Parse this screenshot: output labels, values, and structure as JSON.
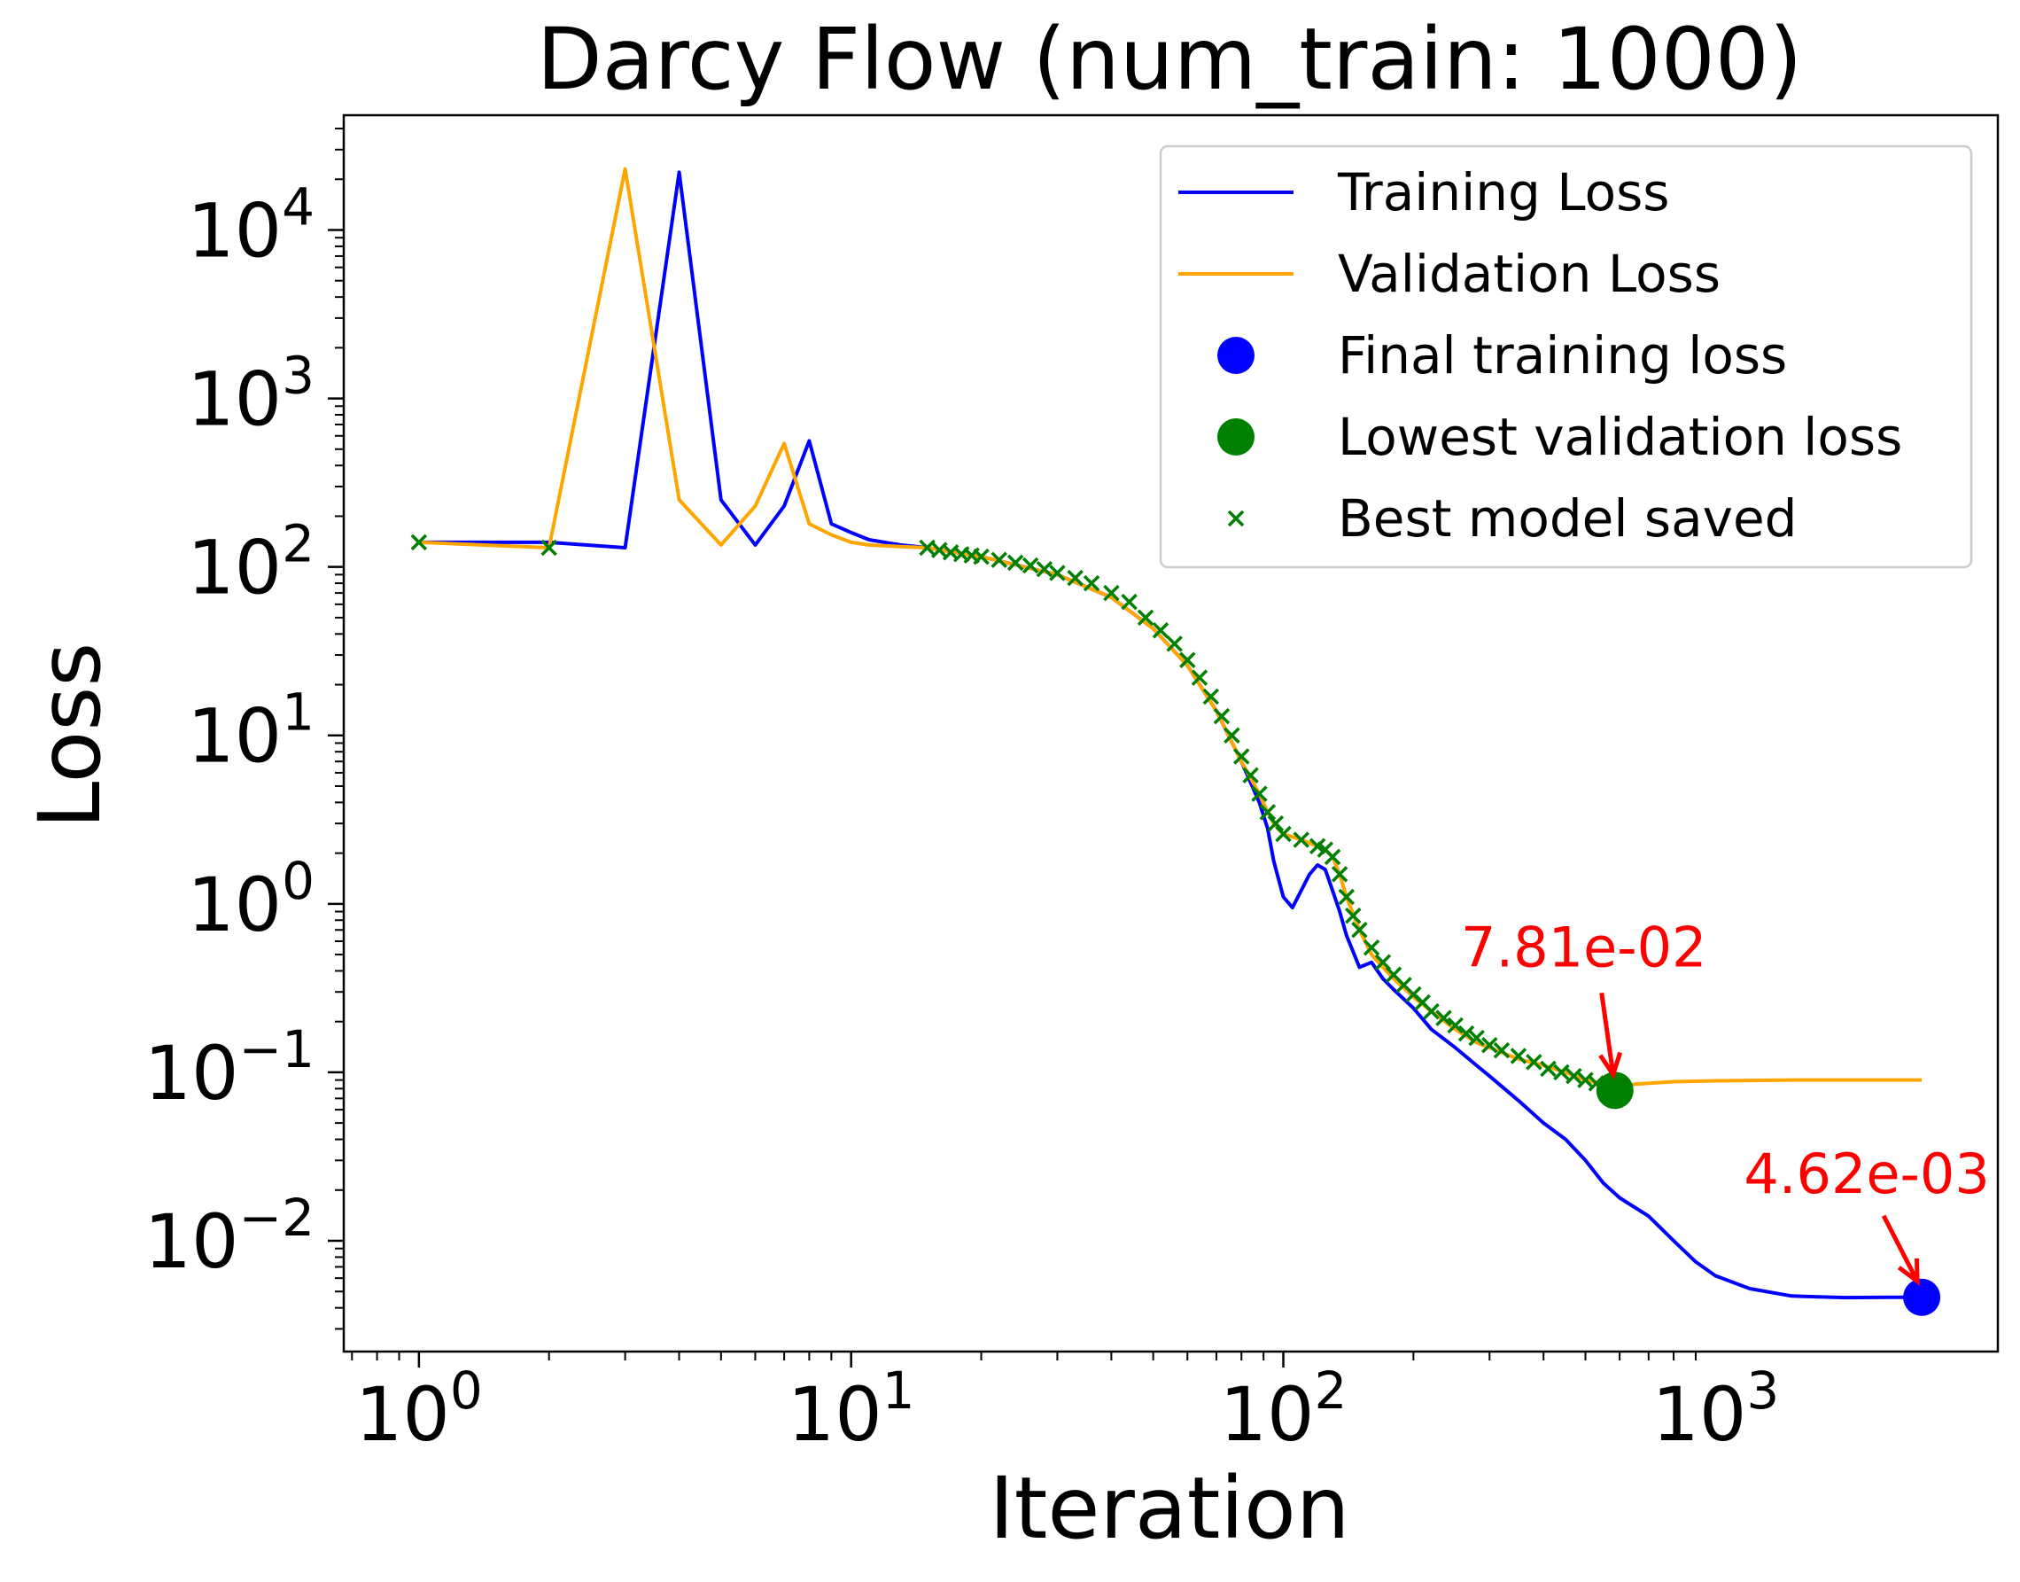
{
  "chart_data": {
    "type": "line",
    "title": "Darcy Flow (num_train: 1000)",
    "xlabel": "Iteration",
    "ylabel": "Loss",
    "xscale": "log",
    "yscale": "log",
    "xlim": [
      0.67,
      4500
    ],
    "ylim": [
      0.0022,
      48000
    ],
    "xticks": [
      {
        "value": 1,
        "base": "10",
        "exp": "0"
      },
      {
        "value": 10,
        "base": "10",
        "exp": "1"
      },
      {
        "value": 100,
        "base": "10",
        "exp": "2"
      },
      {
        "value": 1000,
        "base": "10",
        "exp": "3"
      }
    ],
    "yticks": [
      {
        "value": 0.01,
        "base": "10",
        "exp": "−2"
      },
      {
        "value": 0.1,
        "base": "10",
        "exp": "−1"
      },
      {
        "value": 1,
        "base": "10",
        "exp": "0"
      },
      {
        "value": 10,
        "base": "10",
        "exp": "1"
      },
      {
        "value": 100,
        "base": "10",
        "exp": "2"
      },
      {
        "value": 1000,
        "base": "10",
        "exp": "3"
      },
      {
        "value": 10000,
        "base": "10",
        "exp": "4"
      }
    ],
    "legend": {
      "placement": "upper right",
      "entries": [
        {
          "label": "Training Loss",
          "marker": "line",
          "color": "#0000ff"
        },
        {
          "label": "Validation Loss",
          "marker": "line",
          "color": "#ffa500"
        },
        {
          "label": "Final training loss",
          "marker": "dot",
          "color": "#0000ff"
        },
        {
          "label": "Lowest validation loss",
          "marker": "dot",
          "color": "#008000"
        },
        {
          "label": "Best model saved",
          "marker": "x",
          "color": "#008000"
        }
      ]
    },
    "series": [
      {
        "name": "Training Loss",
        "color": "#0000ff",
        "x": [
          1,
          2,
          3,
          4,
          5,
          6,
          7,
          8,
          9,
          10,
          11,
          13,
          15,
          20,
          30,
          40,
          50,
          60,
          70,
          80,
          88,
          92,
          95,
          100,
          105,
          110,
          115,
          120,
          125,
          130,
          135,
          140,
          150,
          160,
          170,
          180,
          200,
          220,
          250,
          280,
          300,
          350,
          400,
          450,
          500,
          550,
          600,
          700,
          800,
          900,
          1000,
          1200,
          1500,
          2000,
          2500,
          3000
        ],
        "y": [
          140,
          140,
          130,
          22000,
          250,
          135,
          230,
          560,
          180,
          160,
          145,
          135,
          130,
          115,
          90,
          66,
          43,
          26,
          14,
          7,
          4,
          2.8,
          1.8,
          1.1,
          0.95,
          1.2,
          1.5,
          1.7,
          1.6,
          1.2,
          0.9,
          0.65,
          0.42,
          0.45,
          0.36,
          0.31,
          0.24,
          0.18,
          0.14,
          0.11,
          0.095,
          0.068,
          0.05,
          0.04,
          0.03,
          0.022,
          0.018,
          0.014,
          0.01,
          0.0075,
          0.0062,
          0.0052,
          0.0047,
          0.0046,
          0.00462,
          0.00462
        ]
      },
      {
        "name": "Validation Loss",
        "color": "#ffa500",
        "x": [
          1,
          2,
          3,
          4,
          5,
          6,
          7,
          8,
          9,
          10,
          11,
          13,
          15,
          20,
          30,
          40,
          50,
          60,
          70,
          80,
          88,
          92,
          95,
          100,
          105,
          110,
          115,
          120,
          125,
          130,
          135,
          140,
          150,
          160,
          170,
          180,
          200,
          220,
          250,
          280,
          300,
          350,
          400,
          450,
          500,
          550,
          585,
          650,
          800,
          1000,
          1500,
          2000,
          3000
        ],
        "y": [
          140,
          130,
          23000,
          250,
          135,
          230,
          540,
          180,
          155,
          140,
          135,
          132,
          130,
          115,
          90,
          66,
          43,
          26,
          14,
          7,
          4.5,
          3.5,
          3,
          2.6,
          2.5,
          2.4,
          2.3,
          2.2,
          2.1,
          1.9,
          1.5,
          1.1,
          0.7,
          0.5,
          0.42,
          0.36,
          0.28,
          0.23,
          0.18,
          0.15,
          0.14,
          0.12,
          0.11,
          0.1,
          0.09,
          0.085,
          0.0781,
          0.085,
          0.088,
          0.089,
          0.09,
          0.09,
          0.09
        ]
      }
    ],
    "best_model_saved": {
      "name": "Best model saved",
      "color": "#008000",
      "points": [
        [
          1,
          140
        ],
        [
          2,
          130
        ],
        [
          15,
          130
        ],
        [
          16,
          126
        ],
        [
          17,
          122
        ],
        [
          18,
          119
        ],
        [
          19,
          117
        ],
        [
          20,
          115
        ],
        [
          22,
          110
        ],
        [
          24,
          106
        ],
        [
          26,
          102
        ],
        [
          28,
          97
        ],
        [
          30,
          92
        ],
        [
          33,
          86
        ],
        [
          36,
          80
        ],
        [
          40,
          70
        ],
        [
          44,
          62
        ],
        [
          48,
          50
        ],
        [
          52,
          42
        ],
        [
          56,
          35
        ],
        [
          60,
          28
        ],
        [
          64,
          22
        ],
        [
          68,
          17
        ],
        [
          72,
          13
        ],
        [
          76,
          10
        ],
        [
          80,
          7.5
        ],
        [
          84,
          5.8
        ],
        [
          88,
          4.5
        ],
        [
          92,
          3.5
        ],
        [
          96,
          3
        ],
        [
          100,
          2.6
        ],
        [
          110,
          2.4
        ],
        [
          120,
          2.2
        ],
        [
          125,
          2.1
        ],
        [
          130,
          1.9
        ],
        [
          135,
          1.5
        ],
        [
          140,
          1.1
        ],
        [
          145,
          0.85
        ],
        [
          150,
          0.7
        ],
        [
          160,
          0.55
        ],
        [
          170,
          0.45
        ],
        [
          180,
          0.38
        ],
        [
          190,
          0.33
        ],
        [
          200,
          0.29
        ],
        [
          210,
          0.26
        ],
        [
          220,
          0.23
        ],
        [
          235,
          0.21
        ],
        [
          250,
          0.19
        ],
        [
          265,
          0.17
        ],
        [
          280,
          0.16
        ],
        [
          300,
          0.145
        ],
        [
          320,
          0.135
        ],
        [
          350,
          0.125
        ],
        [
          380,
          0.115
        ],
        [
          410,
          0.105
        ],
        [
          440,
          0.1
        ],
        [
          470,
          0.095
        ],
        [
          500,
          0.09
        ],
        [
          530,
          0.086
        ],
        [
          560,
          0.082
        ]
      ]
    },
    "markers": [
      {
        "name": "Final training loss",
        "x": 3000,
        "y": 0.00462,
        "color": "#0000ff",
        "label": "4.62e-03"
      },
      {
        "name": "Lowest validation loss",
        "x": 585,
        "y": 0.0781,
        "color": "#008000",
        "label": "7.81e-02"
      }
    ],
    "annotation_color": "#ff0000"
  }
}
